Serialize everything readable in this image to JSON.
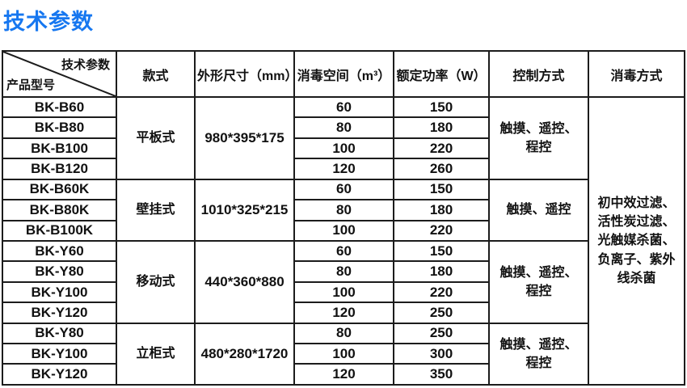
{
  "page_title": "技术参数",
  "accent_color": "#1677f0",
  "table": {
    "corner": {
      "top_right": "技术参数",
      "bottom_left": "产品型号"
    },
    "headers": [
      "款式",
      "外形尺寸（mm）",
      "消毒空间（m³）",
      "额定功率（W）",
      "控制方式",
      "消毒方式"
    ],
    "groups": [
      {
        "style": "平板式",
        "dimensions": "980*395*175",
        "control": "触摸、遥控、程控",
        "rows": [
          {
            "model": "BK-B60",
            "space": "60",
            "power": "150"
          },
          {
            "model": "BK-B80",
            "space": "80",
            "power": "180"
          },
          {
            "model": "BK-B100",
            "space": "100",
            "power": "220"
          },
          {
            "model": "BK-B120",
            "space": "120",
            "power": "260"
          }
        ]
      },
      {
        "style": "壁挂式",
        "dimensions": "1010*325*215",
        "control": "触摸、遥控",
        "rows": [
          {
            "model": "BK-B60K",
            "space": "60",
            "power": "150"
          },
          {
            "model": "BK-B80K",
            "space": "80",
            "power": "180"
          },
          {
            "model": "BK-B100K",
            "space": "100",
            "power": "220"
          }
        ]
      },
      {
        "style": "移动式",
        "dimensions": "440*360*880",
        "control": "触摸、遥控、程控",
        "rows": [
          {
            "model": "BK-Y60",
            "space": "60",
            "power": "150"
          },
          {
            "model": "BK-Y80",
            "space": "80",
            "power": "180"
          },
          {
            "model": "BK-Y100",
            "space": "100",
            "power": "220"
          },
          {
            "model": "BK-Y120",
            "space": "120",
            "power": "250"
          }
        ]
      },
      {
        "style": "立柜式",
        "dimensions": "480*280*1720",
        "control": "触摸、遥控、程控",
        "rows": [
          {
            "model": "BK-Y80",
            "space": "80",
            "power": "250"
          },
          {
            "model": "BK-Y100",
            "space": "100",
            "power": "300"
          },
          {
            "model": "BK-Y120",
            "space": "120",
            "power": "350"
          }
        ]
      }
    ],
    "disinfection_method": "初中效过滤、活性炭过滤、光触媒杀菌、负离子、紫外线杀菌"
  }
}
